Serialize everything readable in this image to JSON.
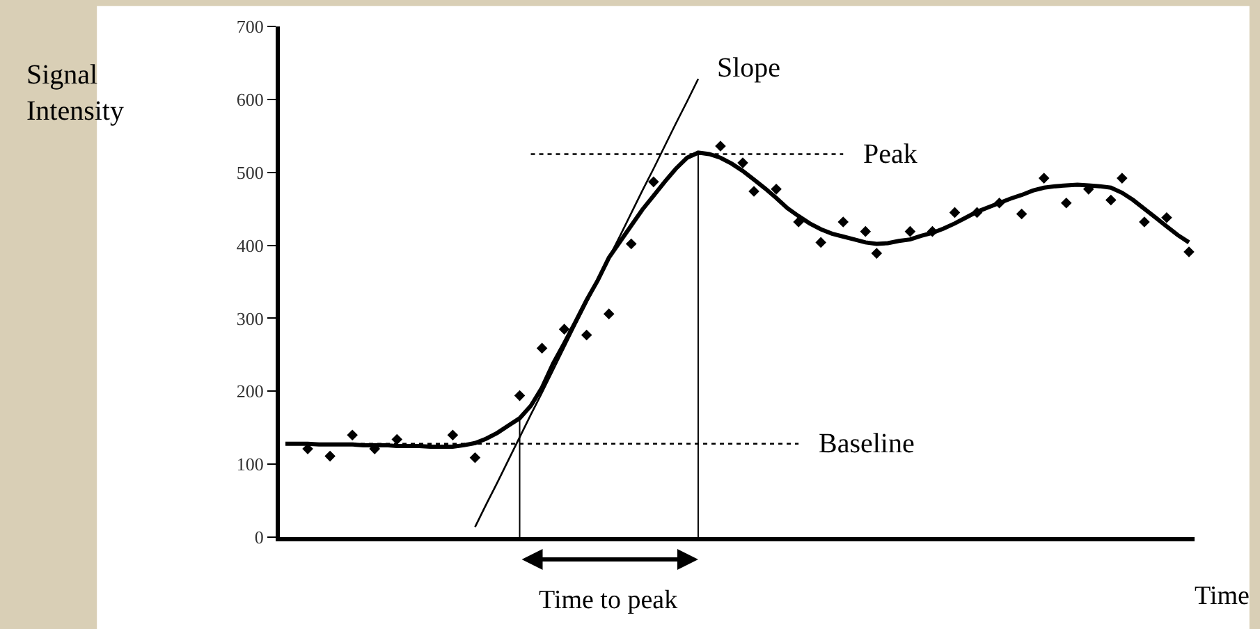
{
  "chart_data": {
    "type": "line",
    "ylabel": "Signal\nIntensity",
    "xlabel": "Time",
    "annotations": [
      "Time to peak"
    ],
    "categories": [
      null,
      null,
      null,
      null,
      null,
      null,
      null,
      null,
      null,
      null,
      null,
      null,
      null,
      null,
      null,
      null,
      null,
      null,
      null,
      null,
      null,
      null,
      null,
      null,
      null,
      null,
      null,
      null,
      null,
      null,
      null,
      null,
      null,
      null,
      null,
      null,
      null,
      null,
      null,
      null,
      null,
      null,
      null,
      null,
      null,
      null,
      null,
      null,
      null,
      null,
      null,
      null,
      null,
      null,
      null,
      null,
      null,
      null,
      null,
      null,
      null,
      null,
      null,
      null,
      null,
      null,
      null,
      null,
      null,
      null,
      null,
      null,
      null,
      null,
      null,
      null,
      null,
      null,
      null,
      null,
      null,
      null
    ],
    "ylim": [
      0,
      700
    ],
    "yticks": [
      0,
      100,
      200,
      300,
      400,
      500,
      600,
      700
    ],
    "tick_labels": "y",
    "series": [
      {
        "type": "scatter",
        "color": "#000000",
        "marker": "diamond",
        "values": [
          null,
          null,
          121,
          null,
          111,
          null,
          140,
          null,
          121,
          null,
          134,
          null,
          null,
          null,
          null,
          140,
          null,
          109,
          null,
          null,
          null,
          194,
          null,
          259,
          null,
          285,
          null,
          277,
          null,
          306,
          null,
          402,
          null,
          487,
          null,
          null,
          null,
          null,
          null,
          536,
          null,
          513,
          474,
          null,
          477,
          null,
          432,
          null,
          404,
          null,
          432,
          null,
          419,
          389,
          null,
          null,
          419,
          null,
          419,
          null,
          445,
          null,
          445,
          null,
          458,
          null,
          443,
          null,
          492,
          null,
          458,
          null,
          477,
          null,
          462,
          492,
          null,
          432,
          null,
          438,
          null,
          391
        ]
      },
      {
        "color": "#000000",
        "line_style": "solid",
        "values": [
          128,
          128,
          128,
          127,
          127,
          127,
          127,
          126,
          126,
          126,
          125,
          125,
          125,
          124,
          124,
          124,
          126,
          129,
          135,
          143,
          153,
          163,
          180,
          205,
          238,
          266,
          295,
          325,
          352,
          383,
          405,
          427,
          449,
          468,
          487,
          505,
          520,
          527,
          525,
          520,
          512,
          502,
          490,
          478,
          465,
          451,
          440,
          430,
          422,
          416,
          412,
          408,
          404,
          402,
          403,
          406,
          408,
          413,
          417,
          423,
          430,
          438,
          446,
          452,
          458,
          464,
          469,
          475,
          479,
          481,
          482,
          483,
          482,
          481,
          479,
          472,
          462,
          450,
          438,
          426,
          414,
          404
        ]
      },
      {
        "name": "Slope",
        "color": "#000000",
        "line_style": "solid",
        "values": [
          null,
          null,
          null,
          null,
          null,
          null,
          null,
          null,
          null,
          null,
          null,
          null,
          null,
          null,
          null,
          null,
          null,
          14,
          45,
          75,
          106,
          137,
          168,
          198,
          229,
          260,
          291,
          321,
          352,
          383,
          413,
          444,
          475,
          505,
          536,
          567,
          597,
          628,
          null,
          null,
          null,
          null,
          null,
          null,
          null,
          null,
          null,
          null,
          null,
          null,
          null,
          null,
          null,
          null,
          null,
          null,
          null,
          null,
          null,
          null,
          null,
          null,
          null,
          null,
          null,
          null,
          null,
          null,
          null,
          null,
          null,
          null,
          null,
          null,
          null,
          null,
          null,
          null,
          null,
          null,
          null,
          null
        ]
      },
      {
        "name": "Peak",
        "color": "#000000",
        "line_style": "dotted",
        "values": [
          null,
          null,
          null,
          null,
          null,
          null,
          null,
          null,
          null,
          null,
          null,
          null,
          null,
          null,
          null,
          null,
          null,
          null,
          null,
          null,
          null,
          null,
          525,
          525,
          525,
          525,
          525,
          525,
          525,
          525,
          525,
          525,
          525,
          525,
          525,
          525,
          525,
          525,
          525,
          525,
          525,
          525,
          525,
          525,
          525,
          525,
          525,
          525,
          525,
          525,
          525,
          null,
          null,
          null,
          null,
          null,
          null,
          null,
          null,
          null,
          null,
          null,
          null,
          null,
          null,
          null,
          null,
          null,
          null,
          null,
          null,
          null,
          null,
          null,
          null,
          null,
          null,
          null,
          null,
          null,
          null,
          null
        ]
      },
      {
        "name": "Baseline",
        "color": "#000000",
        "line_style": "dotted",
        "values": [
          128,
          128,
          128,
          128,
          128,
          128,
          128,
          128,
          128,
          128,
          128,
          128,
          128,
          128,
          128,
          128,
          128,
          128,
          128,
          128,
          128,
          128,
          128,
          128,
          128,
          128,
          128,
          128,
          128,
          128,
          128,
          128,
          128,
          128,
          128,
          128,
          128,
          128,
          128,
          128,
          128,
          128,
          128,
          128,
          128,
          128,
          128,
          null,
          null,
          null,
          null,
          null,
          null,
          null,
          null,
          null,
          null,
          null,
          null,
          null,
          null,
          null,
          null,
          null,
          null,
          null,
          null,
          null,
          null,
          null,
          null,
          null,
          null,
          null,
          null,
          null,
          null,
          null,
          null,
          null,
          null,
          null
        ]
      }
    ]
  }
}
